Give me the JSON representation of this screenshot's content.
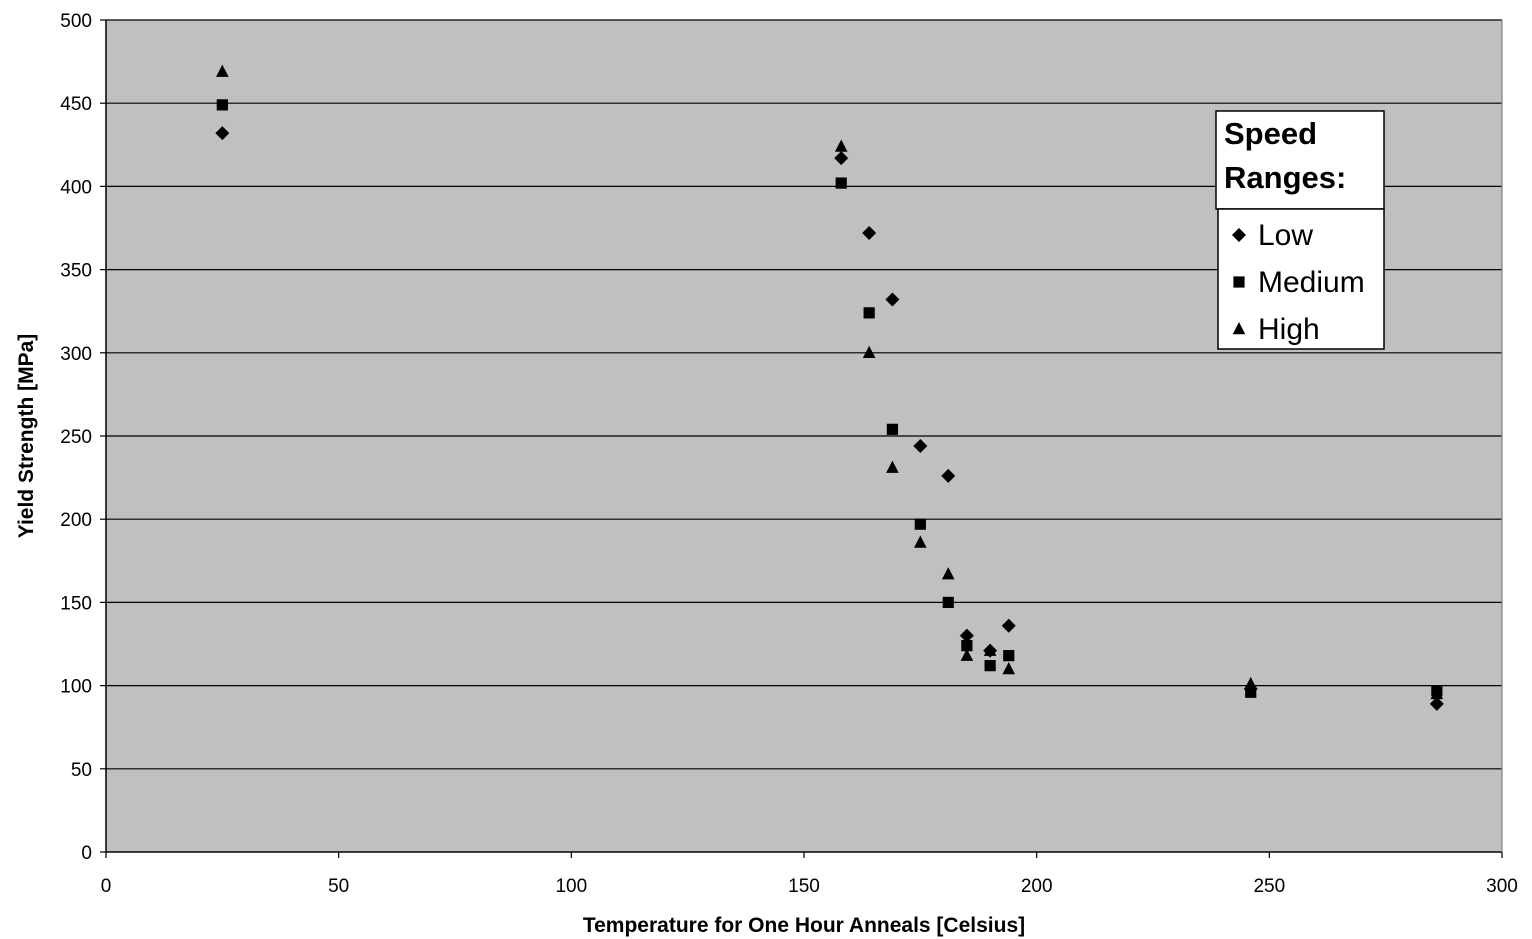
{
  "chart_data": {
    "type": "scatter",
    "xlabel": "Temperature for One Hour Anneals [Celsius]",
    "ylabel": "Yield Strength [MPa]",
    "xlim": [
      0,
      300
    ],
    "ylim": [
      0,
      500
    ],
    "x_ticks": [
      0,
      50,
      100,
      150,
      200,
      250,
      300
    ],
    "y_ticks": [
      0,
      50,
      100,
      150,
      200,
      250,
      300,
      350,
      400,
      450,
      500
    ],
    "grid": "horizontal",
    "legend_title": "Speed Ranges:",
    "legend_position": "top-right",
    "colors": {
      "plot_background": "#c0c0c0",
      "markers": "#000000"
    },
    "series": [
      {
        "name": "Low",
        "marker": "diamond",
        "points": [
          [
            25,
            432
          ],
          [
            158,
            417
          ],
          [
            164,
            372
          ],
          [
            169,
            332
          ],
          [
            175,
            244
          ],
          [
            181,
            226
          ],
          [
            185,
            130
          ],
          [
            190,
            121
          ],
          [
            194,
            136
          ],
          [
            246,
            98
          ],
          [
            286,
            89
          ]
        ]
      },
      {
        "name": "Medium",
        "marker": "square",
        "points": [
          [
            25,
            449
          ],
          [
            158,
            402
          ],
          [
            164,
            324
          ],
          [
            169,
            254
          ],
          [
            175,
            197
          ],
          [
            181,
            150
          ],
          [
            185,
            124
          ],
          [
            190,
            112
          ],
          [
            194,
            118
          ],
          [
            246,
            96
          ],
          [
            286,
            97
          ]
        ]
      },
      {
        "name": "High",
        "marker": "triangle",
        "points": [
          [
            25,
            469
          ],
          [
            158,
            424
          ],
          [
            164,
            300
          ],
          [
            169,
            231
          ],
          [
            175,
            186
          ],
          [
            181,
            167
          ],
          [
            185,
            118
          ],
          [
            190,
            121
          ],
          [
            194,
            110
          ],
          [
            246,
            101
          ],
          [
            286,
            95
          ]
        ]
      }
    ]
  }
}
